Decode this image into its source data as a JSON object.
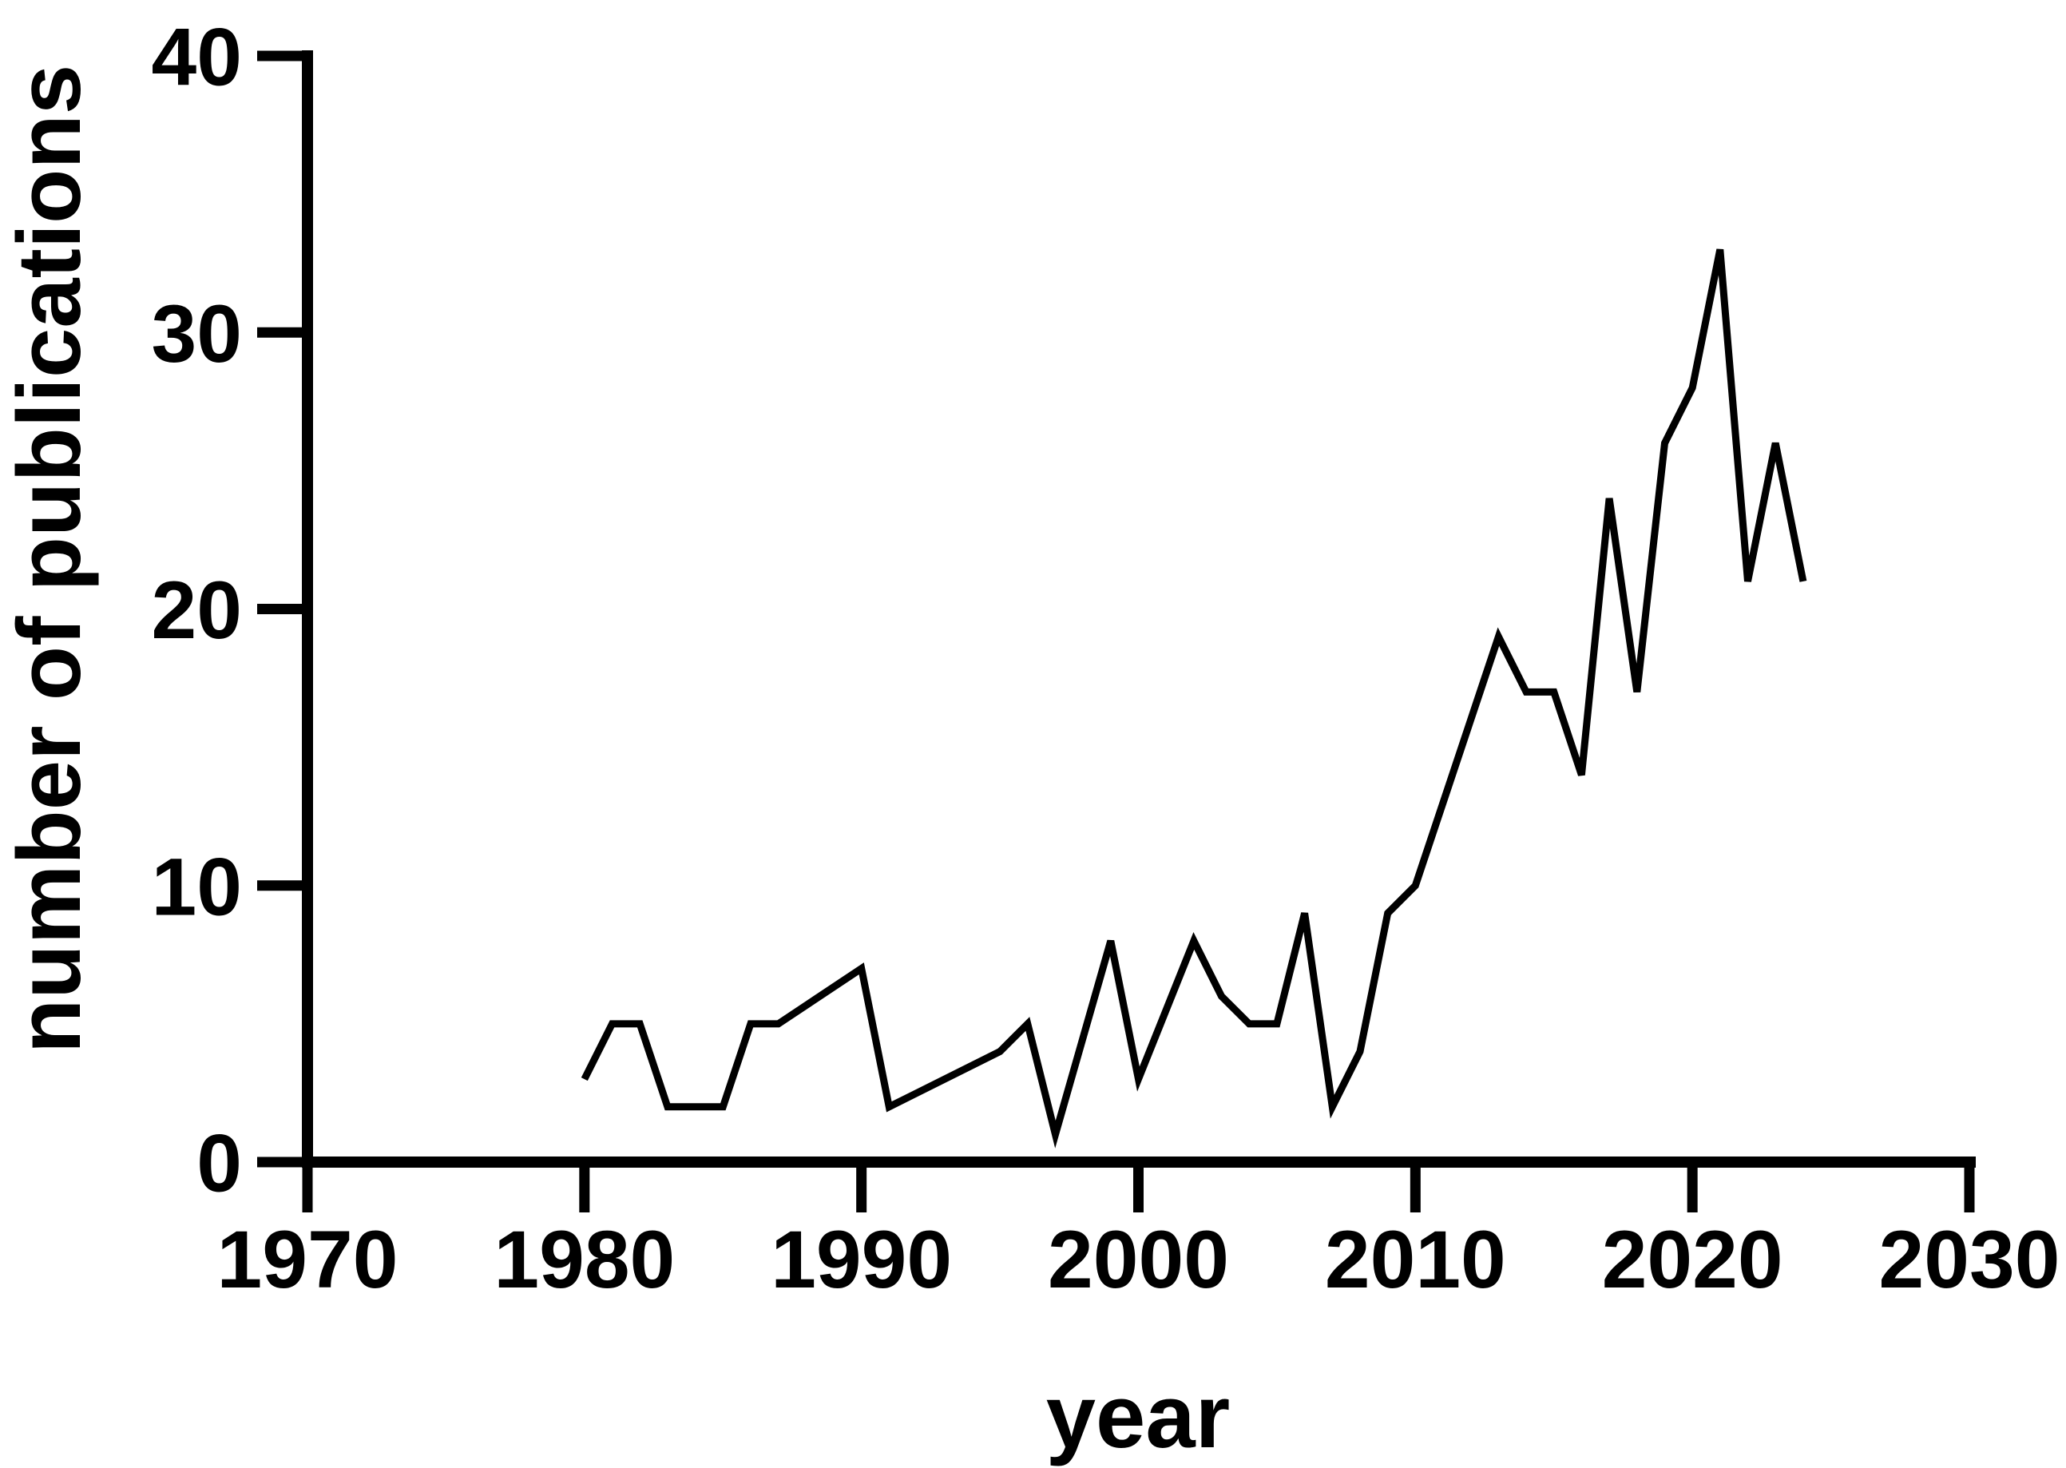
{
  "figure": {
    "background_color": "#ffffff",
    "line_color": "#000000",
    "axis_color": "#000000"
  },
  "chart_data": {
    "type": "line",
    "xlabel": "year",
    "ylabel": "number of publications",
    "xlim": [
      1970,
      2030
    ],
    "ylim": [
      0,
      40
    ],
    "x_ticks": [
      1970,
      1980,
      1990,
      2000,
      2010,
      2020,
      2030
    ],
    "y_ticks": [
      0,
      10,
      20,
      30,
      40
    ],
    "grid": false,
    "legend_position": "none",
    "series": [
      {
        "name": "publications",
        "points": [
          [
            1980,
            3
          ],
          [
            1981,
            5
          ],
          [
            1982,
            5
          ],
          [
            1983,
            2
          ],
          [
            1984,
            2
          ],
          [
            1985,
            2
          ],
          [
            1986,
            5
          ],
          [
            1987,
            5
          ],
          [
            1990,
            7
          ],
          [
            1991,
            2
          ],
          [
            1995,
            4
          ],
          [
            1996,
            5
          ],
          [
            1997,
            1
          ],
          [
            1999,
            8
          ],
          [
            2000,
            3
          ],
          [
            2002,
            8
          ],
          [
            2003,
            6
          ],
          [
            2004,
            5
          ],
          [
            2005,
            5
          ],
          [
            2006,
            9
          ],
          [
            2007,
            2
          ],
          [
            2008,
            4
          ],
          [
            2009,
            9
          ],
          [
            2010,
            10
          ],
          [
            2011,
            13
          ],
          [
            2012,
            16
          ],
          [
            2013,
            19
          ],
          [
            2014,
            17
          ],
          [
            2015,
            17
          ],
          [
            2016,
            14
          ],
          [
            2017,
            24
          ],
          [
            2018,
            17
          ],
          [
            2019,
            26
          ],
          [
            2020,
            28
          ],
          [
            2021,
            33
          ],
          [
            2022,
            21
          ],
          [
            2023,
            26
          ],
          [
            2024,
            21
          ]
        ]
      }
    ]
  }
}
